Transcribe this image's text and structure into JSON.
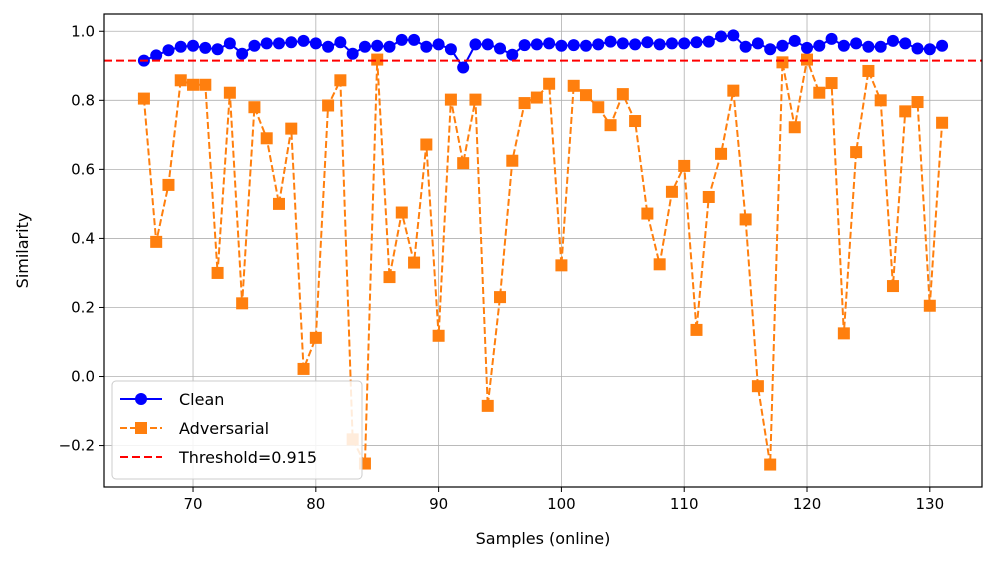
{
  "chart_data": {
    "type": "line",
    "xlabel": "Samples (online)",
    "ylabel": "Similarity",
    "xlim": [
      62.75,
      134.25
    ],
    "ylim": [
      -0.32,
      1.05
    ],
    "xticks": [
      70,
      80,
      90,
      100,
      110,
      120,
      130
    ],
    "yticks": [
      -0.2,
      0.0,
      0.2,
      0.4,
      0.6,
      0.8,
      1.0
    ],
    "xtick_labels": [
      "70",
      "80",
      "90",
      "100",
      "110",
      "120",
      "130"
    ],
    "ytick_labels": [
      "−0.2",
      "0.0",
      "0.2",
      "0.4",
      "0.6",
      "0.8",
      "1.0"
    ],
    "grid": true,
    "legend_position": "lower-left",
    "threshold": {
      "name": "Threshold=0.915",
      "value": 0.915,
      "color": "#ff0000"
    },
    "x": [
      66,
      67,
      68,
      69,
      70,
      71,
      72,
      73,
      74,
      75,
      76,
      77,
      78,
      79,
      80,
      81,
      82,
      83,
      84,
      85,
      86,
      87,
      88,
      89,
      90,
      91,
      92,
      93,
      94,
      95,
      96,
      97,
      98,
      99,
      100,
      101,
      102,
      103,
      104,
      105,
      106,
      107,
      108,
      109,
      110,
      111,
      112,
      113,
      114,
      115,
      116,
      117,
      118,
      119,
      120,
      121,
      122,
      123,
      124,
      125,
      126,
      127,
      128,
      129,
      130,
      131
    ],
    "series": [
      {
        "name": "Clean",
        "color": "#0000ff",
        "marker": "circle",
        "linestyle": "solid",
        "values": [
          0.915,
          0.93,
          0.945,
          0.955,
          0.958,
          0.952,
          0.948,
          0.965,
          0.935,
          0.958,
          0.965,
          0.965,
          0.968,
          0.972,
          0.965,
          0.955,
          0.968,
          0.935,
          0.955,
          0.958,
          0.955,
          0.975,
          0.975,
          0.955,
          0.962,
          0.948,
          0.895,
          0.962,
          0.962,
          0.95,
          0.932,
          0.96,
          0.962,
          0.965,
          0.958,
          0.96,
          0.958,
          0.962,
          0.97,
          0.965,
          0.962,
          0.968,
          0.962,
          0.965,
          0.965,
          0.968,
          0.97,
          0.985,
          0.988,
          0.955,
          0.965,
          0.948,
          0.958,
          0.972,
          0.952,
          0.958,
          0.978,
          0.958,
          0.965,
          0.955,
          0.955,
          0.972,
          0.965,
          0.95,
          0.948,
          0.958
        ]
      },
      {
        "name": "Adversarial",
        "color": "#ff7f0e",
        "marker": "square",
        "linestyle": "dashed",
        "values": [
          0.805,
          0.39,
          0.555,
          0.858,
          0.845,
          0.845,
          0.3,
          0.822,
          0.212,
          0.78,
          0.69,
          0.5,
          0.718,
          0.022,
          0.112,
          0.785,
          0.858,
          -0.182,
          -0.252,
          0.918,
          0.288,
          0.475,
          0.33,
          0.672,
          0.118,
          0.802,
          0.618,
          0.802,
          -0.085,
          0.23,
          0.625,
          0.792,
          0.808,
          0.848,
          0.322,
          0.842,
          0.815,
          0.78,
          0.728,
          0.818,
          0.74,
          0.472,
          0.325,
          0.535,
          0.61,
          0.135,
          0.52,
          0.645,
          0.828,
          0.455,
          -0.028,
          -0.255,
          0.91,
          0.722,
          0.918,
          0.822,
          0.85,
          0.125,
          0.65,
          0.885,
          0.8,
          0.262,
          0.768,
          0.795,
          0.205,
          0.735
        ]
      }
    ]
  }
}
